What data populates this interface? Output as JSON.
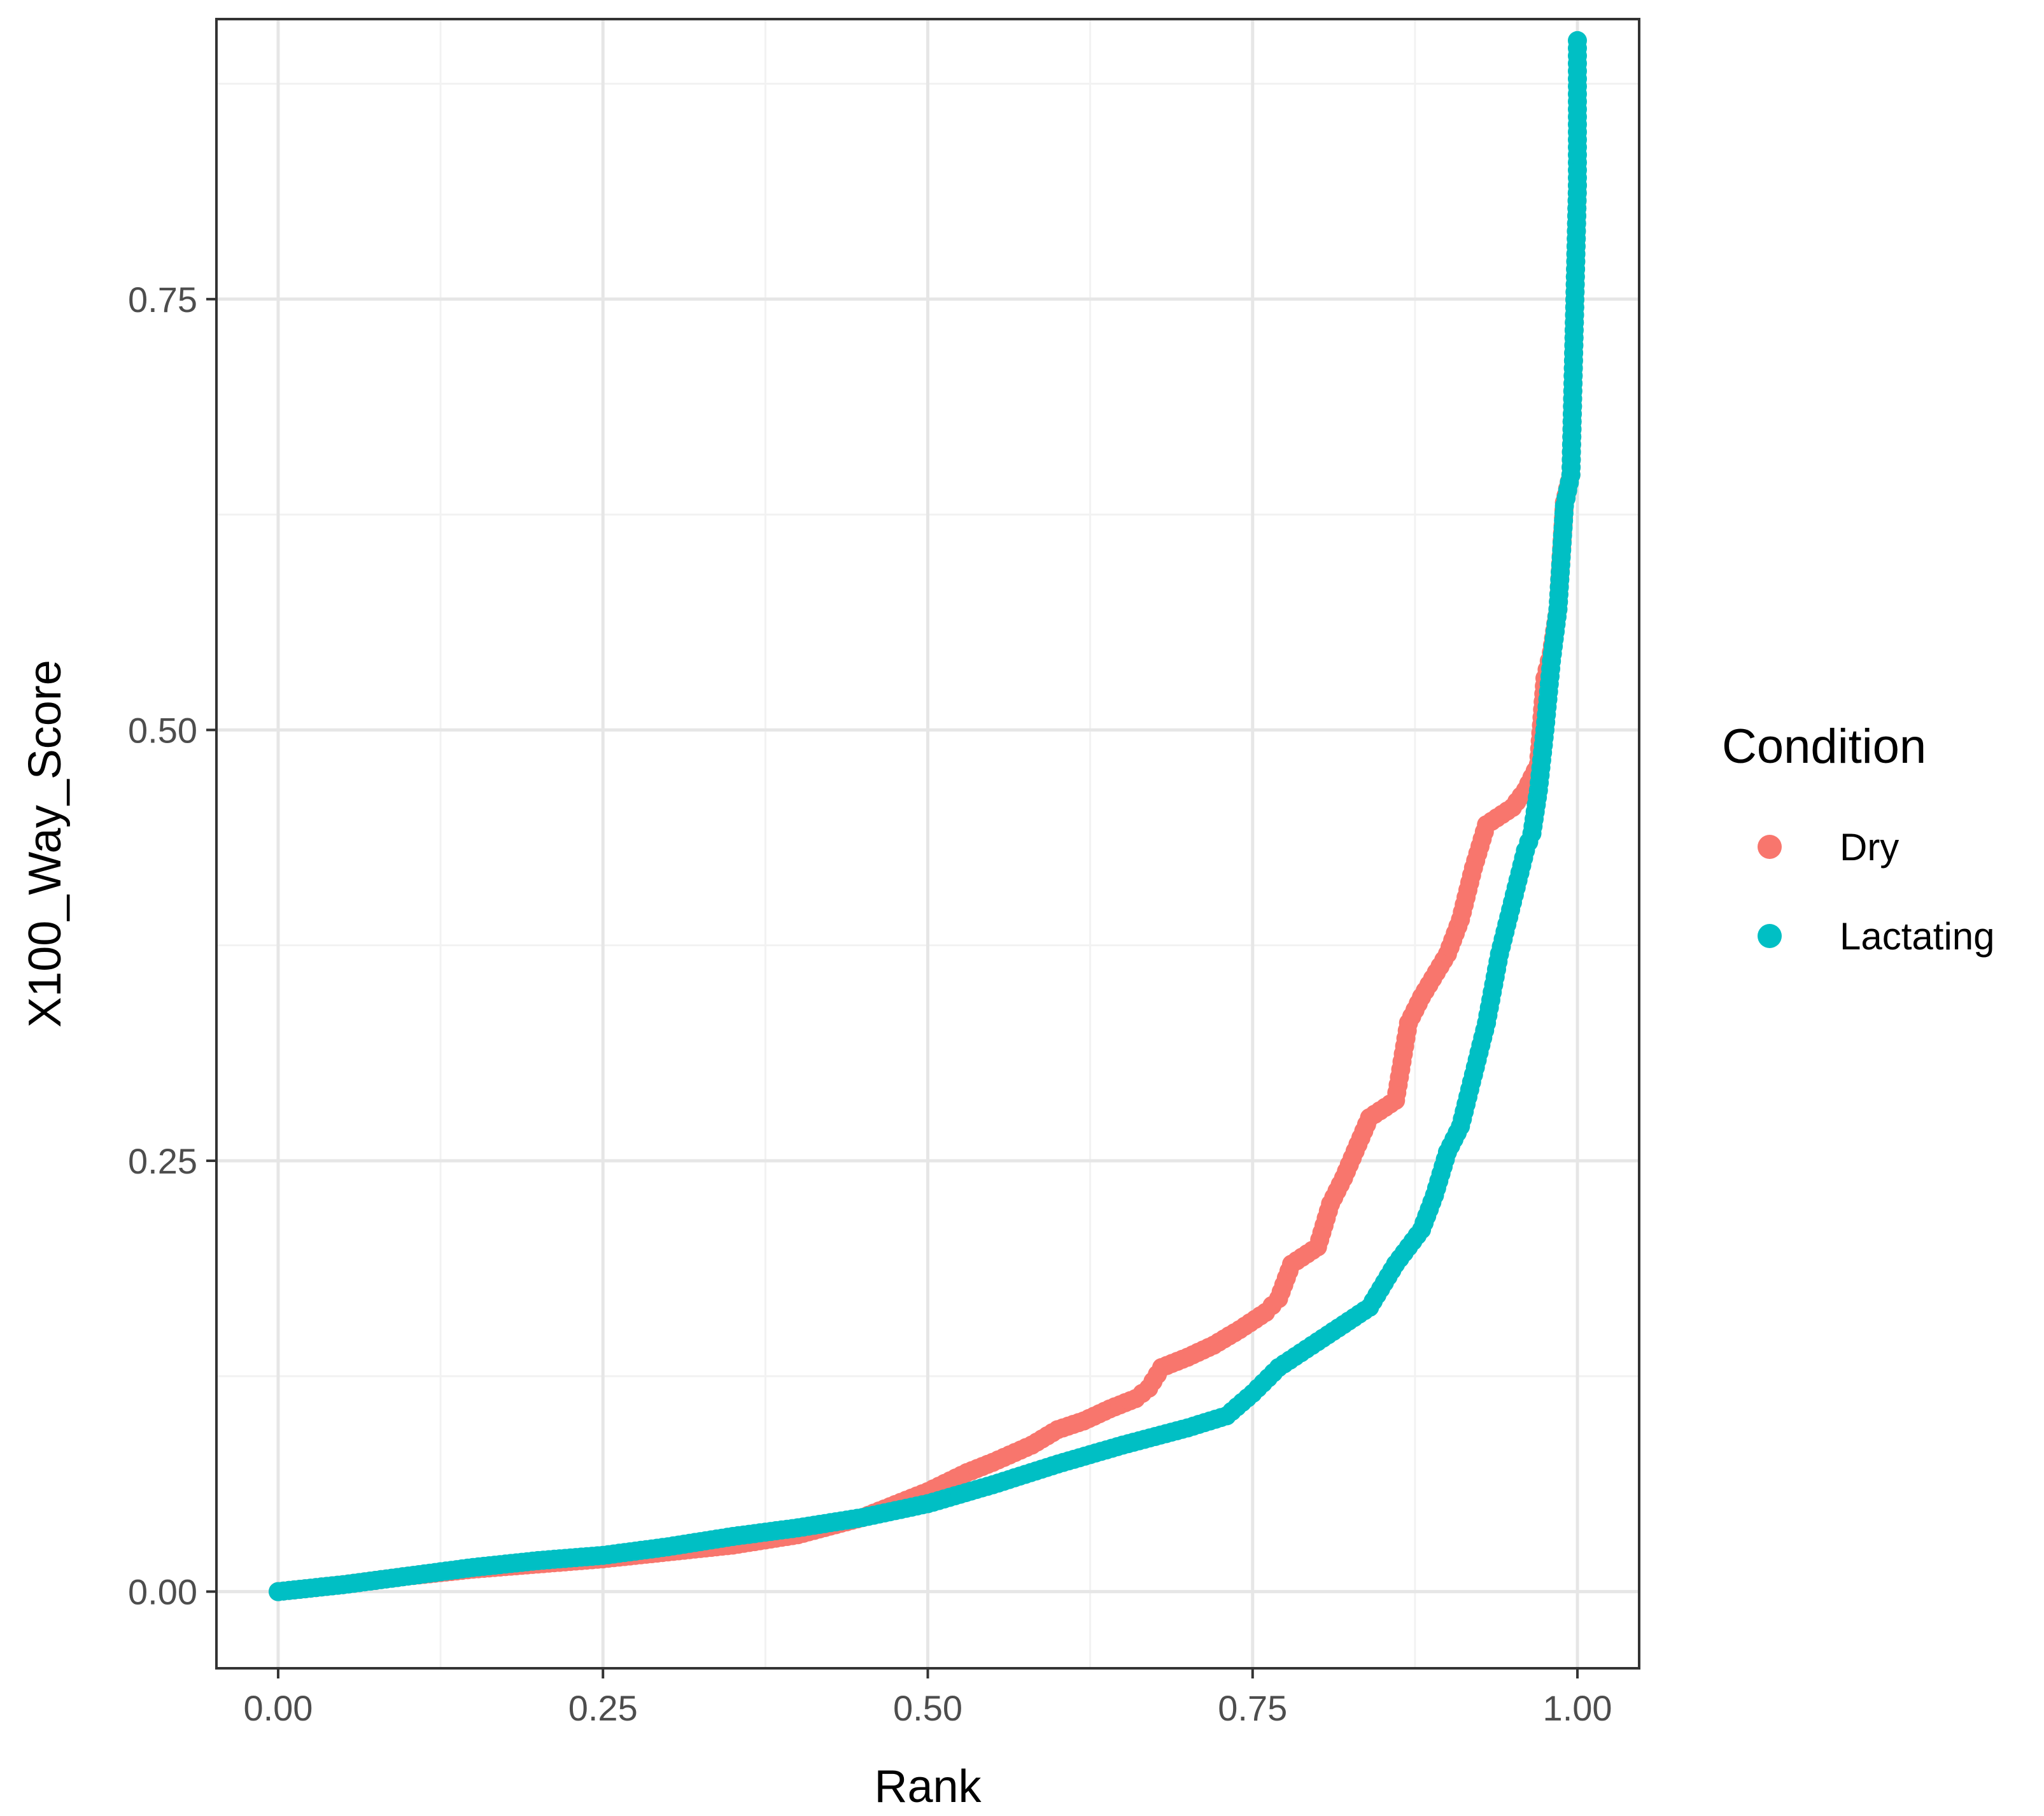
{
  "chart_data": {
    "type": "scatter",
    "xlabel": "Rank",
    "ylabel": "X100_Way_Score",
    "xlim": [
      -0.0475,
      1.0475
    ],
    "ylim": [
      -0.0445,
      0.9125
    ],
    "x_ticks": [
      0,
      0.25,
      0.5,
      0.75,
      1
    ],
    "x_tick_labels": [
      "0.00",
      "0.25",
      "0.50",
      "0.75",
      "1.00"
    ],
    "y_ticks": [
      0,
      0.25,
      0.5,
      0.75
    ],
    "y_tick_labels": [
      "0.00",
      "0.25",
      "0.50",
      "0.75"
    ],
    "grid": true,
    "legend": {
      "title": "Condition",
      "position": "right",
      "entries": [
        {
          "label": "Dry",
          "color": "#F8766D"
        },
        {
          "label": "Lactating",
          "color": "#00BFC4"
        }
      ]
    },
    "series": [
      {
        "name": "Dry",
        "color": "#F8766D",
        "points": [
          [
            0.0,
            0.0
          ],
          [
            0.05,
            0.004
          ],
          [
            0.1,
            0.009
          ],
          [
            0.15,
            0.013
          ],
          [
            0.2,
            0.016
          ],
          [
            0.25,
            0.019
          ],
          [
            0.3,
            0.023
          ],
          [
            0.35,
            0.027
          ],
          [
            0.4,
            0.033
          ],
          [
            0.45,
            0.043
          ],
          [
            0.5,
            0.058
          ],
          [
            0.53,
            0.069
          ],
          [
            0.55,
            0.075
          ],
          [
            0.58,
            0.085
          ],
          [
            0.6,
            0.094
          ],
          [
            0.62,
            0.099
          ],
          [
            0.64,
            0.106
          ],
          [
            0.66,
            0.112
          ],
          [
            0.67,
            0.118
          ],
          [
            0.68,
            0.13
          ],
          [
            0.7,
            0.136
          ],
          [
            0.72,
            0.143
          ],
          [
            0.74,
            0.152
          ],
          [
            0.76,
            0.162
          ],
          [
            0.77,
            0.17
          ],
          [
            0.78,
            0.19
          ],
          [
            0.8,
            0.2
          ],
          [
            0.81,
            0.225
          ],
          [
            0.82,
            0.24
          ],
          [
            0.84,
            0.275
          ],
          [
            0.86,
            0.285
          ],
          [
            0.87,
            0.33
          ],
          [
            0.88,
            0.345
          ],
          [
            0.9,
            0.37
          ],
          [
            0.91,
            0.39
          ],
          [
            0.92,
            0.42
          ],
          [
            0.93,
            0.445
          ],
          [
            0.95,
            0.455
          ],
          [
            0.96,
            0.465
          ],
          [
            0.97,
            0.48
          ],
          [
            0.975,
            0.53
          ],
          [
            0.98,
            0.545
          ],
          [
            0.985,
            0.57
          ],
          [
            0.99,
            0.632
          ],
          [
            0.995,
            0.648
          ],
          [
            1.0,
            0.816
          ]
        ]
      },
      {
        "name": "Lactating",
        "color": "#00BFC4",
        "points": [
          [
            0.0,
            0.0
          ],
          [
            0.05,
            0.004
          ],
          [
            0.1,
            0.009
          ],
          [
            0.15,
            0.014
          ],
          [
            0.2,
            0.018
          ],
          [
            0.25,
            0.021
          ],
          [
            0.3,
            0.026
          ],
          [
            0.35,
            0.032
          ],
          [
            0.4,
            0.037
          ],
          [
            0.45,
            0.043
          ],
          [
            0.5,
            0.051
          ],
          [
            0.55,
            0.062
          ],
          [
            0.6,
            0.074
          ],
          [
            0.65,
            0.085
          ],
          [
            0.7,
            0.095
          ],
          [
            0.73,
            0.102
          ],
          [
            0.75,
            0.115
          ],
          [
            0.77,
            0.13
          ],
          [
            0.8,
            0.145
          ],
          [
            0.82,
            0.155
          ],
          [
            0.84,
            0.165
          ],
          [
            0.86,
            0.19
          ],
          [
            0.88,
            0.21
          ],
          [
            0.89,
            0.23
          ],
          [
            0.9,
            0.255
          ],
          [
            0.91,
            0.27
          ],
          [
            0.92,
            0.3
          ],
          [
            0.93,
            0.33
          ],
          [
            0.94,
            0.37
          ],
          [
            0.95,
            0.4
          ],
          [
            0.96,
            0.43
          ],
          [
            0.965,
            0.44
          ],
          [
            0.97,
            0.465
          ],
          [
            0.975,
            0.5
          ],
          [
            0.98,
            0.54
          ],
          [
            0.985,
            0.57
          ],
          [
            0.99,
            0.63
          ],
          [
            0.995,
            0.648
          ],
          [
            1.0,
            0.816
          ],
          [
            1.0,
            0.9
          ]
        ]
      }
    ]
  }
}
